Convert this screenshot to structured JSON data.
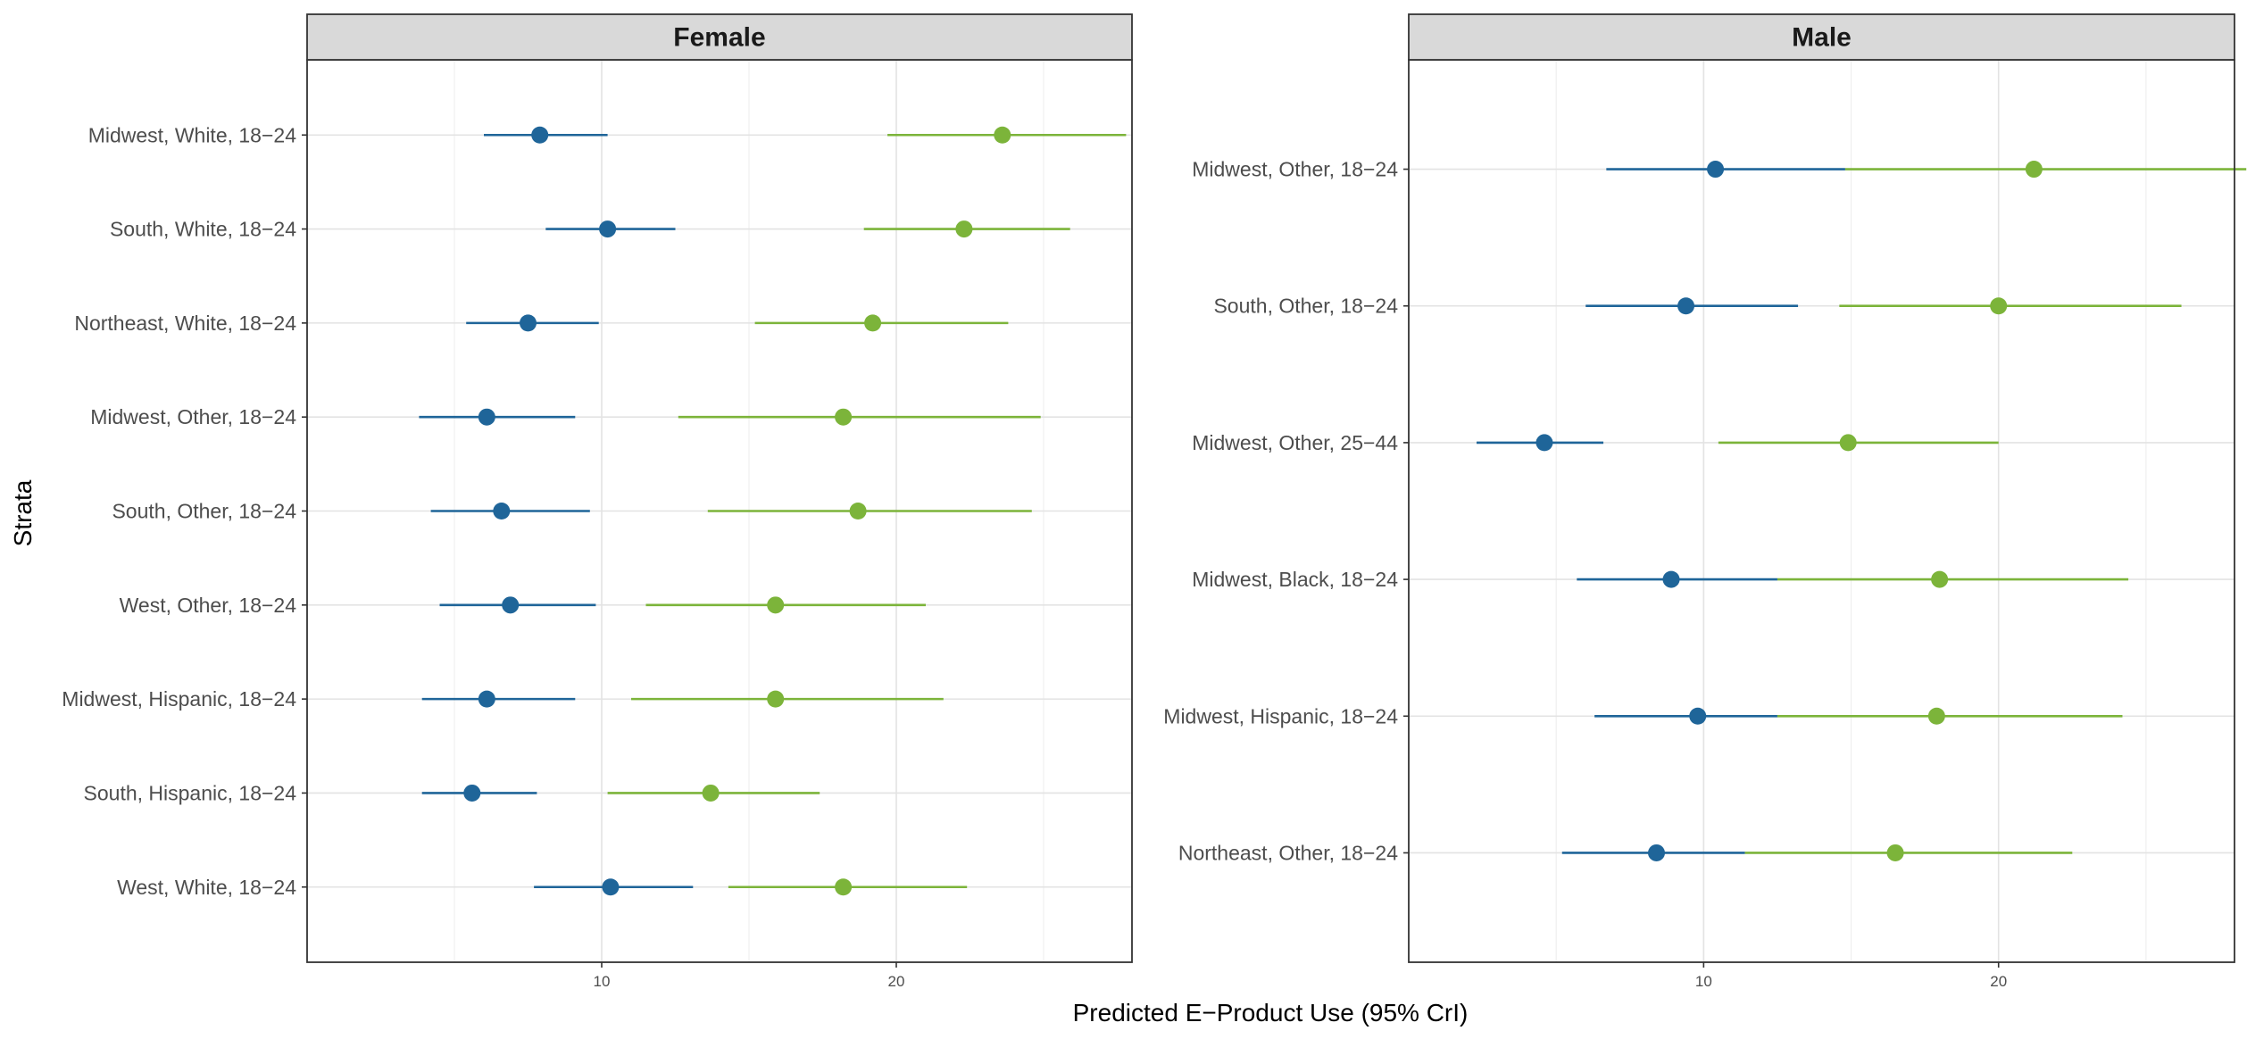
{
  "chart_data": {
    "type": "scatter",
    "subtype": "forest-plot-with-intervals",
    "xlabel": "Predicted E−Product Use (95% CrI)",
    "ylabel": "Strata",
    "xlim": [
      0,
      28
    ],
    "x_ticks": [
      10,
      20
    ],
    "grid": true,
    "legend": "none",
    "series_colors": [
      "#1f6599",
      "#7cb43a"
    ],
    "panels": [
      {
        "name": "Female",
        "categories": [
          "Midwest, White, 18−24",
          "South, White, 18−24",
          "Northeast, White, 18−24",
          "Midwest, Other, 18−24",
          "South, Other, 18−24",
          "West, Other, 18−24",
          "Midwest, Hispanic, 18−24",
          "South, Hispanic, 18−24",
          "West, White, 18−24"
        ],
        "series": [
          {
            "color": "#1f6599",
            "estimates": [
              7.9,
              10.2,
              7.5,
              6.1,
              6.6,
              6.9,
              6.1,
              5.6,
              10.3
            ],
            "lower": [
              6.0,
              8.1,
              5.4,
              3.8,
              4.2,
              4.5,
              3.9,
              3.9,
              7.7
            ],
            "upper": [
              10.2,
              12.5,
              9.9,
              9.1,
              9.6,
              9.8,
              9.1,
              7.8,
              13.1
            ]
          },
          {
            "color": "#7cb43a",
            "estimates": [
              23.6,
              22.3,
              19.2,
              18.2,
              18.7,
              15.9,
              15.9,
              13.7,
              18.2
            ],
            "lower": [
              19.7,
              18.9,
              15.2,
              12.6,
              13.6,
              11.5,
              11.0,
              10.2,
              14.3
            ],
            "upper": [
              27.8,
              25.9,
              23.8,
              24.9,
              24.6,
              21.0,
              21.6,
              17.4,
              22.4
            ]
          }
        ]
      },
      {
        "name": "Male",
        "categories": [
          "Midwest, Other, 18−24",
          "South, Other, 18−24",
          "Midwest, Other, 25−44",
          "Midwest, Black, 18−24",
          "Midwest, Hispanic, 18−24",
          "Northeast, Other, 18−24"
        ],
        "series": [
          {
            "color": "#1f6599",
            "estimates": [
              10.4,
              9.4,
              4.6,
              8.9,
              9.8,
              8.4
            ],
            "lower": [
              6.7,
              6.0,
              2.3,
              5.7,
              6.3,
              5.2
            ],
            "upper": [
              14.8,
              13.2,
              6.6,
              12.5,
              12.5,
              11.4
            ]
          },
          {
            "color": "#7cb43a",
            "estimates": [
              21.2,
              20.0,
              14.9,
              18.0,
              17.9,
              16.5
            ],
            "lower": [
              14.8,
              14.6,
              10.5,
              12.5,
              12.5,
              11.4
            ],
            "upper": [
              28.4,
              26.2,
              20.0,
              24.4,
              24.2,
              22.5
            ]
          }
        ]
      }
    ]
  }
}
